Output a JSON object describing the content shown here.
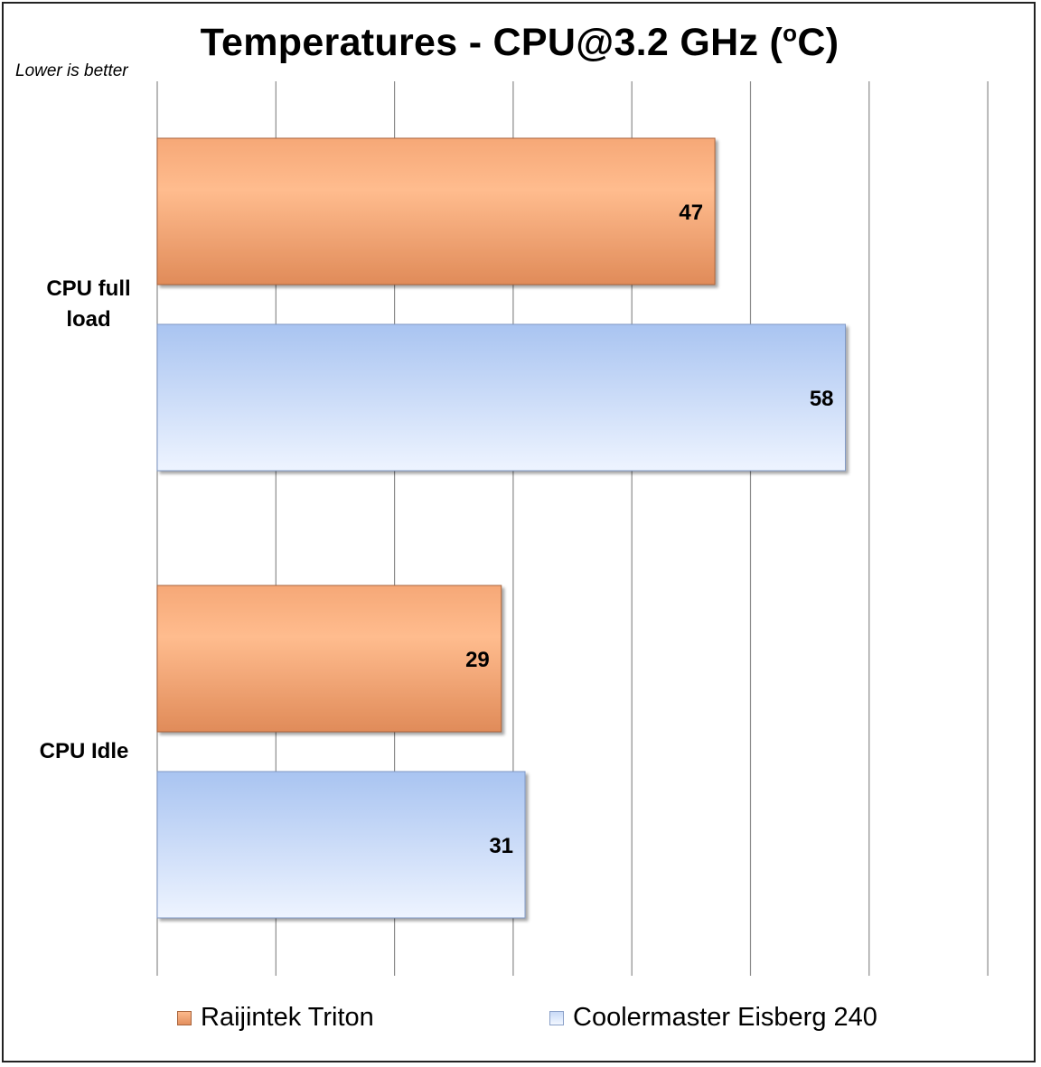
{
  "chart_data": {
    "type": "bar",
    "orientation": "horizontal",
    "title": "Temperatures - CPU@3.2 GHz (oC)",
    "subtitle": "Lower is better",
    "categories": [
      "CPU full load",
      "CPU Idle"
    ],
    "series": [
      {
        "name": "Raijintek Triton",
        "values": [
          47,
          29
        ],
        "color": "#f4a472"
      },
      {
        "name": "Coolermaster Eisberg 240",
        "values": [
          58,
          31
        ],
        "color": "#b9cff3"
      }
    ],
    "xlim": [
      0,
      70
    ],
    "grid": true,
    "legend": "bottom",
    "data_labels": true
  }
}
